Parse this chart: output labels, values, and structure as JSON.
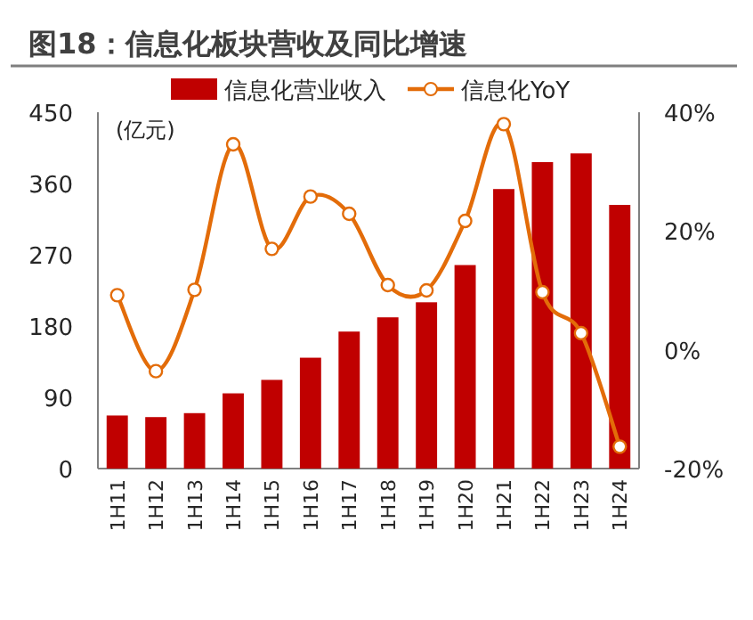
{
  "chart_data": {
    "type": "bar",
    "title": "图18：信息化板块营收及同比增速",
    "categories": [
      "1H11",
      "1H12",
      "1H13",
      "1H14",
      "1H15",
      "1H16",
      "1H17",
      "1H18",
      "1H19",
      "1H20",
      "1H21",
      "1H22",
      "1H23",
      "1H24"
    ],
    "series": [
      {
        "name": "信息化营业收入",
        "color": "#c00000",
        "values": [
          67,
          65,
          70,
          95,
          112,
          140,
          173,
          191,
          210,
          257,
          353,
          387,
          398,
          333
        ]
      },
      {
        "name": "信息化YoY",
        "type": "line",
        "axis": "y2",
        "color": "#e36c09",
        "marker": "circle",
        "values": [
          9.2,
          -3.6,
          10.1,
          34.6,
          17,
          25.8,
          22.9,
          10.9,
          10,
          21.7,
          38,
          9.7,
          2.8,
          -16.3
        ]
      }
    ],
    "ylim": [
      0,
      450
    ],
    "yticks": [
      0,
      90,
      180,
      270,
      360,
      450
    ],
    "y2lim": [
      -20,
      40
    ],
    "y2ticks": [
      {
        "value": -20,
        "label": "-20%"
      },
      {
        "value": 0,
        "label": "0%"
      },
      {
        "value": 20,
        "label": "20%"
      },
      {
        "value": 40,
        "label": "40%"
      }
    ],
    "legend": "top",
    "annotations": [
      "(亿元)"
    ]
  }
}
